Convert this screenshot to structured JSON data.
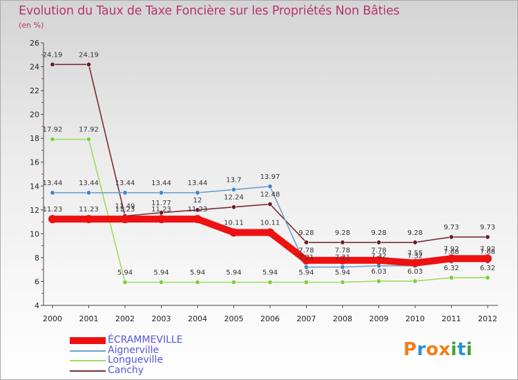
{
  "title": "Evolution du Taux de Taxe Foncière sur les Propriétés Non Bâties",
  "unit_label": "(en %)",
  "brand": {
    "text": "Proxiti",
    "colors": [
      "#ef7d1a",
      "#2a8fd4",
      "#ef7d1a",
      "#ef7d1a",
      "#3fa535",
      "#2a8fd4",
      "#3fa535"
    ]
  },
  "chart_data": {
    "type": "line",
    "title": "Evolution du Taux de Taxe Foncière sur les Propriétés Non Bâties",
    "ylabel": "(en %)",
    "xlabel": "",
    "x": [
      "2000",
      "2001",
      "2002",
      "2003",
      "2004",
      "2005",
      "2006",
      "2007",
      "2008",
      "2009",
      "2010",
      "2011",
      "2012"
    ],
    "ylim": [
      4,
      26
    ],
    "yticks": [
      4,
      6,
      8,
      10,
      12,
      14,
      16,
      18,
      20,
      22,
      24,
      26
    ],
    "legend_position": "bottom-left",
    "series": [
      {
        "name": "Canchy",
        "color": "#7a2a35",
        "marker": "#6b1c2a",
        "values": [
          24.19,
          24.19,
          11.49,
          11.77,
          12,
          12.24,
          12.48,
          9.28,
          9.28,
          9.28,
          9.28,
          9.73,
          9.73
        ],
        "labels": [
          "24.19",
          "24.19",
          "11.49",
          "11.77",
          "12",
          "12.24",
          "12.48",
          "9.28",
          "9.28",
          "9.28",
          "9.28",
          "9.73",
          "9.73"
        ]
      },
      {
        "name": "Longueville",
        "color": "#9fdc5a",
        "marker": "#7fcc3a",
        "values": [
          17.92,
          17.92,
          5.94,
          5.94,
          5.94,
          5.94,
          5.94,
          5.94,
          5.94,
          6.03,
          6.03,
          6.32,
          6.32
        ],
        "labels": [
          "17.92",
          "17.92",
          "5.94",
          "5.94",
          "5.94",
          "5.94",
          "5.94",
          "5.94",
          "5.94",
          "6.03",
          "6.03",
          "6.32",
          "6.32"
        ]
      },
      {
        "name": "Aignerville",
        "color": "#6c9fd1",
        "marker": "#3f86c8",
        "values": [
          13.44,
          13.44,
          13.44,
          13.44,
          13.44,
          13.7,
          13.97,
          7.21,
          7.21,
          7.32,
          7.32,
          7.68,
          7.68
        ],
        "labels": [
          "13.44",
          "13.44",
          "13.44",
          "13.44",
          "13.44",
          "13.7",
          "13.97",
          "7.21",
          "7.21",
          "7.32",
          "7.32",
          "7.68",
          "7.68"
        ]
      },
      {
        "name": "ÉCRAMMEVILLE",
        "color": "#ee1111",
        "marker": "#ee1111",
        "values": [
          11.23,
          11.23,
          11.23,
          11.23,
          11.23,
          10.11,
          10.11,
          7.78,
          7.78,
          7.78,
          7.55,
          7.92,
          7.92
        ],
        "labels": [
          "11.23",
          "11.23",
          "11.23",
          "11.23",
          "11.23",
          "10.11",
          "10.11",
          "7.78",
          "7.78",
          "7.78",
          "7.55",
          "7.92",
          "7.92"
        ]
      }
    ]
  },
  "legend": [
    {
      "name": "ÉCRAMMEVILLE",
      "color": "#ee1111",
      "text_color": "#5555dd"
    },
    {
      "name": "Aignerville",
      "color": "#6c9fd1",
      "text_color": "#5555dd"
    },
    {
      "name": "Longueville",
      "color": "#9fdc5a",
      "text_color": "#5555dd"
    },
    {
      "name": "Canchy",
      "color": "#7a2a35",
      "text_color": "#5555dd"
    }
  ]
}
